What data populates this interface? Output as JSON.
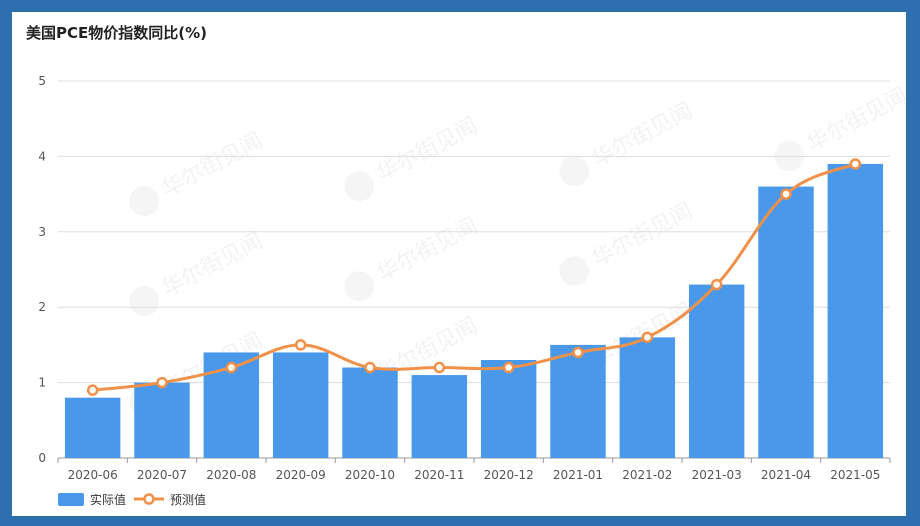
{
  "chart_data": {
    "type": "bar",
    "title": "美国PCE物价指数同比(%)",
    "categories": [
      "2020-06",
      "2020-07",
      "2020-08",
      "2020-09",
      "2020-10",
      "2020-11",
      "2020-12",
      "2021-01",
      "2021-02",
      "2021-03",
      "2021-04",
      "2021-05"
    ],
    "series": [
      {
        "name": "实际值",
        "type": "bar",
        "color": "#4a98ea",
        "values": [
          0.8,
          1.0,
          1.4,
          1.4,
          1.2,
          1.1,
          1.3,
          1.5,
          1.6,
          2.3,
          3.6,
          3.9
        ]
      },
      {
        "name": "预测值",
        "type": "line",
        "color": "#f0914a",
        "values": [
          0.9,
          1.0,
          1.2,
          1.5,
          1.2,
          1.2,
          1.2,
          1.4,
          1.6,
          2.3,
          3.5,
          3.9
        ]
      }
    ],
    "ylim": [
      0,
      5
    ],
    "yticks": [
      0,
      1,
      2,
      3,
      4,
      5
    ],
    "grid": true,
    "legend_position": "bottom-left",
    "xlabel": "",
    "ylabel": ""
  },
  "watermark": {
    "text": "华尔街见闻",
    "icon": "watermark-logo-icon"
  }
}
